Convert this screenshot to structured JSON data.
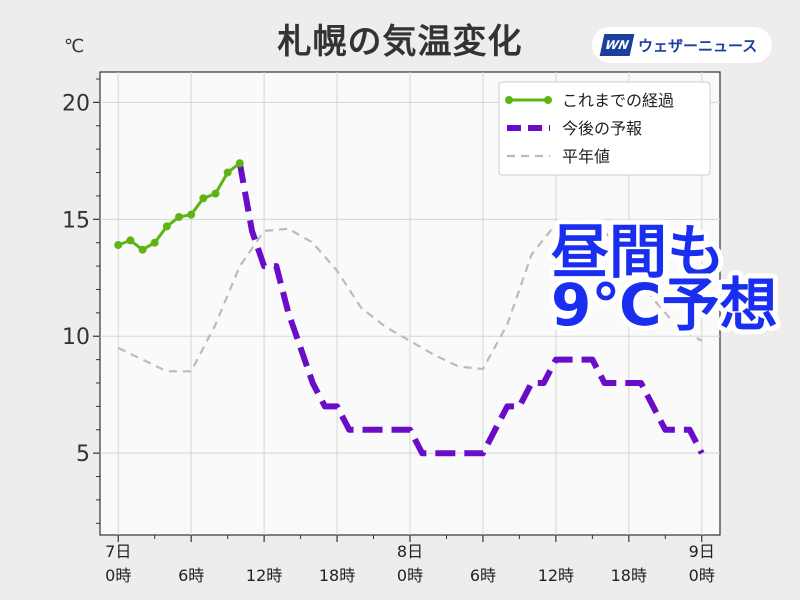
{
  "header": {
    "title": "札幌の気温変化",
    "unit": "℃",
    "logo_mark": "WN",
    "logo_text": "ウェザーニュース"
  },
  "overlay": {
    "line1": "昼間も",
    "line2": "9℃予想"
  },
  "chart_data": {
    "type": "line",
    "ylim": [
      1.5,
      21.3
    ],
    "xlim": [
      -1.5,
      49.5
    ],
    "yticks": [
      5,
      10,
      15,
      20
    ],
    "grid": true,
    "legend_position": "top-right",
    "x_ticks": [
      {
        "x": 0,
        "day": "7日",
        "time": "0時"
      },
      {
        "x": 6,
        "day": "",
        "time": "6時"
      },
      {
        "x": 12,
        "day": "",
        "time": "12時"
      },
      {
        "x": 18,
        "day": "",
        "time": "18時"
      },
      {
        "x": 24,
        "day": "8日",
        "time": "0時"
      },
      {
        "x": 30,
        "day": "",
        "time": "6時"
      },
      {
        "x": 36,
        "day": "",
        "time": "12時"
      },
      {
        "x": 42,
        "day": "",
        "time": "18時"
      },
      {
        "x": 48,
        "day": "9日",
        "time": "0時"
      }
    ],
    "series": [
      {
        "name": "これまでの経過",
        "color": "#5cb514",
        "style": "solid-markers",
        "x": [
          0,
          1,
          2,
          3,
          4,
          5,
          6,
          7,
          8,
          9,
          10
        ],
        "y": [
          13.9,
          14.1,
          13.7,
          14.0,
          14.7,
          15.1,
          15.2,
          15.9,
          16.1,
          17.0,
          17.4
        ]
      },
      {
        "name": "今後の予報",
        "color": "#6a0dc8",
        "style": "thick-dash",
        "x": [
          10,
          11,
          12,
          13,
          14,
          15,
          16,
          17,
          18,
          19,
          20,
          21,
          22,
          23,
          24,
          25,
          26,
          27,
          28,
          29,
          30,
          31,
          32,
          33,
          34,
          35,
          36,
          37,
          38,
          39,
          40,
          41,
          42,
          43,
          44,
          45,
          46,
          47,
          48
        ],
        "y": [
          17.4,
          14.5,
          13.0,
          13.0,
          11.0,
          9.5,
          8.0,
          7.0,
          7.0,
          6.0,
          6.0,
          6.0,
          6.0,
          6.0,
          6.0,
          5.0,
          5.0,
          5.0,
          5.0,
          5.0,
          5.0,
          6.0,
          7.0,
          7.0,
          8.0,
          8.0,
          9.0,
          9.0,
          9.0,
          9.0,
          8.0,
          8.0,
          8.0,
          8.0,
          7.0,
          6.0,
          6.0,
          6.0,
          5.0
        ]
      },
      {
        "name": "平年値",
        "color": "#bbbbbb",
        "style": "thin-dash",
        "x": [
          0,
          2,
          4,
          6,
          8,
          10,
          12,
          14,
          16,
          18,
          20,
          22,
          24,
          26,
          28,
          30,
          32,
          34,
          36,
          38,
          40,
          42,
          44,
          46,
          48
        ],
        "y": [
          9.5,
          9.0,
          8.5,
          8.5,
          10.5,
          13.0,
          14.5,
          14.6,
          14.0,
          12.8,
          11.2,
          10.4,
          9.8,
          9.2,
          8.7,
          8.6,
          10.5,
          13.5,
          14.8,
          15.0,
          14.5,
          13.2,
          11.6,
          10.4,
          9.8
        ]
      }
    ]
  }
}
